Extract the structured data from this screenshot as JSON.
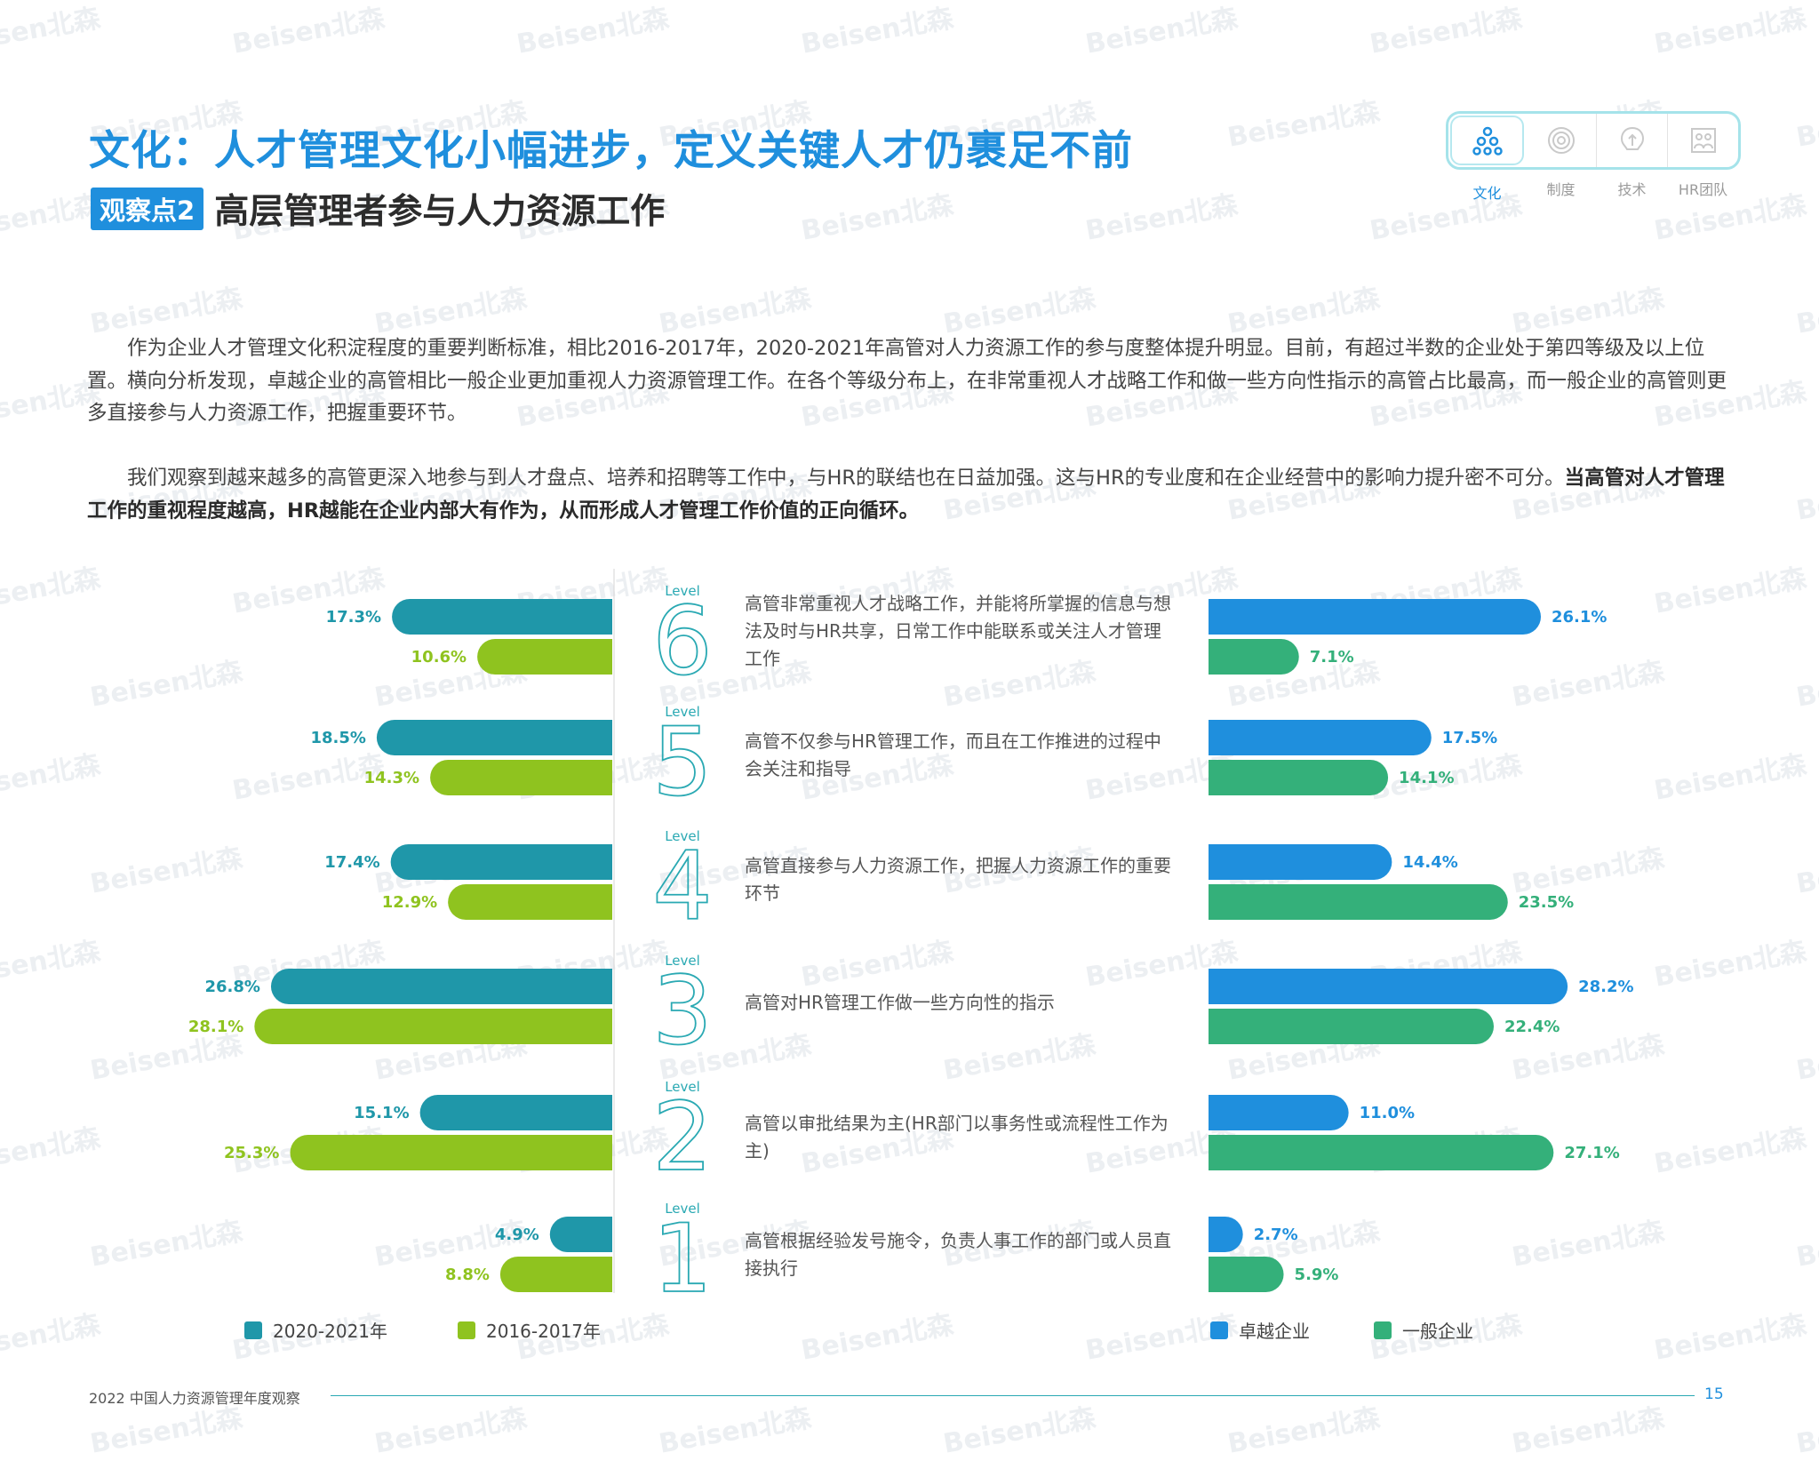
{
  "header": {
    "title": "文化：人才管理文化小幅进步，定义关键人才仍裹足不前",
    "badge": "观察点2",
    "subtitle": "高层管理者参与人力资源工作"
  },
  "nav": {
    "items": [
      {
        "label": "文化",
        "icon": "culture-icon",
        "active": true
      },
      {
        "label": "制度",
        "icon": "system-icon",
        "active": false
      },
      {
        "label": "技术",
        "icon": "technology-icon",
        "active": false
      },
      {
        "label": "HR团队",
        "icon": "hr-team-icon",
        "active": false
      }
    ]
  },
  "paragraphs": {
    "p1": "作为企业人才管理文化积淀程度的重要判断标准，相比2016-2017年，2020-2021年高管对人力资源工作的参与度整体提升明显。目前，有超过半数的企业处于第四等级及以上位置。横向分析发现，卓越企业的高管相比一般企业更加重视人力资源管理工作。在各个等级分布上，在非常重视人才战略工作和做一些方向性指示的高管占比最高，而一般企业的高管则更多直接参与人力资源工作，把握重要环节。",
    "p2": "我们观察到越来越多的高管更深入地参与到人才盘点、培养和招聘等工作中，与HR的联结也在日益加强。这与HR的专业度和在企业经营中的影响力提升密不可分。",
    "p2_bold": "当高管对人才管理工作的重视程度越高，HR越能在企业内部大有作为，从而形成人才管理工作价值的正向循环。"
  },
  "watermark": "Beisen北森",
  "chart_data": {
    "type": "bar",
    "level_word": "Level",
    "levels": [
      {
        "num": "6",
        "desc": "高管非常重视人才战略工作，并能将所掌握的信息与想法及时与HR共享，日常工作中能联系或关注人才管理工作"
      },
      {
        "num": "5",
        "desc": "高管不仅参与HR管理工作，而且在工作推进的过程中会关注和指导"
      },
      {
        "num": "4",
        "desc": "高管直接参与人力资源工作，把握人力资源工作的重要环节"
      },
      {
        "num": "3",
        "desc": "高管对HR管理工作做一些方向性的指示"
      },
      {
        "num": "2",
        "desc": "高管以审批结果为主(HR部门以事务性或流程性工作为主)"
      },
      {
        "num": "1",
        "desc": "高管根据经验发号施令，负责人事工作的部门或人员直接执行"
      }
    ],
    "left": {
      "series": [
        {
          "name": "2020-2021年",
          "color": "#1f97a9",
          "values": [
            17.3,
            18.5,
            17.4,
            26.8,
            15.1,
            4.9
          ],
          "labels": [
            "17.3%",
            "18.5%",
            "17.4%",
            "26.8%",
            "15.1%",
            "4.9%"
          ]
        },
        {
          "name": "2016-2017年",
          "color": "#8fc31f",
          "values": [
            10.6,
            14.3,
            12.9,
            28.1,
            25.3,
            8.8
          ],
          "labels": [
            "10.6%",
            "14.3%",
            "12.9%",
            "28.1%",
            "25.3%",
            "8.8%"
          ]
        }
      ]
    },
    "right": {
      "series": [
        {
          "name": "卓越企业",
          "color": "#1f8fdd",
          "values": [
            26.1,
            17.5,
            14.4,
            28.2,
            11.0,
            2.7
          ],
          "labels": [
            "26.1%",
            "17.5%",
            "14.4%",
            "28.2%",
            "11.0%",
            "2.7%"
          ]
        },
        {
          "name": "一般企业",
          "color": "#34b07a",
          "values": [
            7.1,
            14.1,
            23.5,
            22.4,
            27.1,
            5.9
          ],
          "labels": [
            "7.1%",
            "14.1%",
            "23.5%",
            "22.4%",
            "27.1%",
            "5.9%"
          ]
        }
      ]
    }
  },
  "footer": {
    "report_title": "2022 中国人力资源管理年度观察",
    "page_number": "15"
  }
}
